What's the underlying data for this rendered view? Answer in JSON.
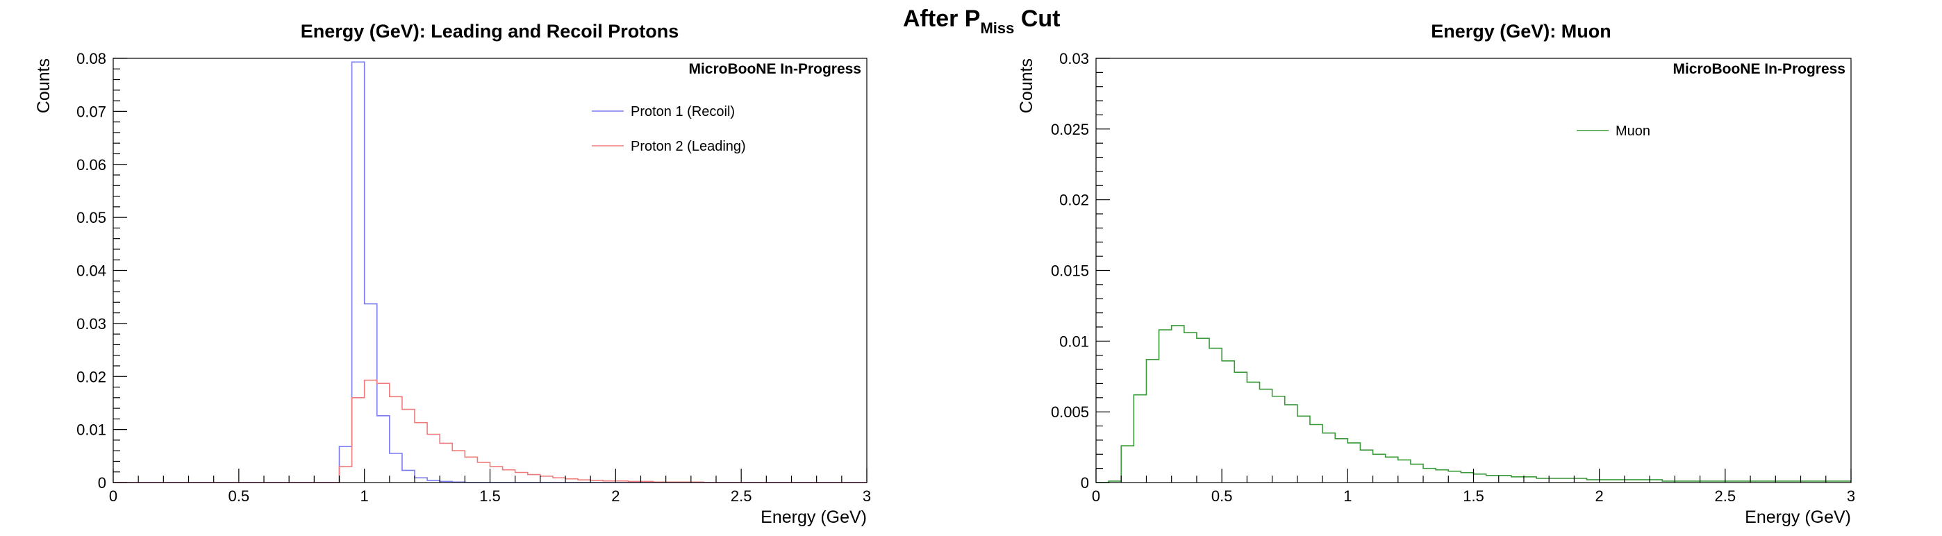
{
  "page_title": {
    "prefix": "After P",
    "subscript": "Miss",
    "suffix": " Cut"
  },
  "colors": {
    "proton1": "#7b7bf0",
    "proton2": "#f07b7b",
    "muon": "#3a9a3a",
    "axis": "#000000"
  },
  "chart_data": [
    {
      "type": "step",
      "title": "Energy (GeV): Leading and Recoil Protons",
      "xlabel": "Energy (GeV)",
      "ylabel": "Counts",
      "annotation": "MicroBooNE In-Progress",
      "xlim": [
        0,
        3
      ],
      "ylim": [
        0,
        0.08
      ],
      "xticks": [
        "0",
        "0.5",
        "1",
        "1.5",
        "2",
        "2.5",
        "3"
      ],
      "yticks": [
        "0",
        "0.01",
        "0.02",
        "0.03",
        "0.04",
        "0.05",
        "0.06",
        "0.07",
        "0.08"
      ],
      "legend_position": "top-right",
      "bin_width": 0.05,
      "bin_start": 0,
      "series": [
        {
          "name": "Proton 1 (Recoil)",
          "color_key": "proton1",
          "values": [
            0,
            0,
            0,
            0,
            0,
            0,
            0,
            0,
            0,
            0,
            0,
            0,
            0,
            0,
            0,
            0,
            0,
            0,
            0.0068,
            0.0793,
            0.0337,
            0.0126,
            0.0055,
            0.0023,
            0.0009,
            0.0004,
            0.0002,
            0.0001,
            0,
            0,
            0,
            0,
            0,
            0,
            0,
            0,
            0,
            0,
            0,
            0,
            0,
            0,
            0,
            0,
            0,
            0,
            0,
            0,
            0,
            0,
            0,
            0,
            0,
            0,
            0,
            0,
            0,
            0,
            0,
            0
          ]
        },
        {
          "name": "Proton 2 (Leading)",
          "color_key": "proton2",
          "values": [
            0,
            0,
            0,
            0,
            0,
            0,
            0,
            0,
            0,
            0,
            0,
            0,
            0,
            0,
            0,
            0,
            0,
            0,
            0.003,
            0.016,
            0.0193,
            0.0187,
            0.0162,
            0.0138,
            0.0113,
            0.0091,
            0.0074,
            0.006,
            0.0048,
            0.0038,
            0.003,
            0.0024,
            0.0019,
            0.0015,
            0.0012,
            0.0009,
            0.0007,
            0.0005,
            0.0004,
            0.0003,
            0.0003,
            0.0002,
            0.0002,
            0.0001,
            0.0001,
            0.0001,
            0.0001,
            0,
            0,
            0,
            0,
            0,
            0,
            0,
            0,
            0,
            0,
            0,
            0,
            0
          ]
        }
      ]
    },
    {
      "type": "step",
      "title": "Energy (GeV): Muon",
      "xlabel": "Energy (GeV)",
      "ylabel": "Counts",
      "annotation": "MicroBooNE In-Progress",
      "xlim": [
        0,
        3
      ],
      "ylim": [
        0,
        0.03
      ],
      "xticks": [
        "0",
        "0.5",
        "1",
        "1.5",
        "2",
        "2.5",
        "3"
      ],
      "yticks": [
        "0",
        "0.005",
        "0.01",
        "0.015",
        "0.02",
        "0.025",
        "0.03"
      ],
      "legend_position": "top-center",
      "bin_width": 0.05,
      "bin_start": 0,
      "series": [
        {
          "name": "Muon",
          "color_key": "muon",
          "values": [
            0,
            0.0001,
            0.0026,
            0.0062,
            0.0087,
            0.0108,
            0.0111,
            0.0106,
            0.0102,
            0.0095,
            0.0086,
            0.0078,
            0.0071,
            0.0066,
            0.0061,
            0.0055,
            0.0047,
            0.0041,
            0.0035,
            0.0031,
            0.0028,
            0.0023,
            0.002,
            0.0018,
            0.0016,
            0.0013,
            0.001,
            0.0009,
            0.0008,
            0.0007,
            0.0006,
            0.0005,
            0.0005,
            0.0004,
            0.0004,
            0.0003,
            0.0003,
            0.0003,
            0.0003,
            0.0002,
            0.0002,
            0.0002,
            0.0002,
            0.0002,
            0.0002,
            0.0001,
            0.0001,
            0.0001,
            0.0001,
            0.0001,
            0.0001,
            0.0001,
            0.0001,
            0.0001,
            0.0001,
            0.0001,
            0.0001,
            0.0001,
            0.0001,
            0.0001
          ]
        }
      ]
    }
  ]
}
